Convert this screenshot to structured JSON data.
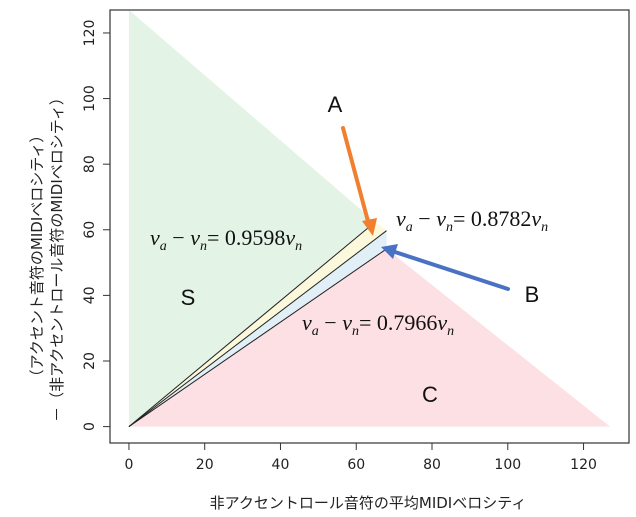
{
  "chart_data": {
    "type": "area",
    "xlabel": "非アクセントロール音符の平均MIDIベロシティ",
    "ylabel_lines": [
      "（アクセント音符のMIDIベロシティ）",
      "－（非アクセントロール音符のMIDIベロシティ）"
    ],
    "xlim": [
      -5,
      132
    ],
    "ylim": [
      -5,
      127
    ],
    "x_ticks": [
      "0",
      "20",
      "40",
      "60",
      "80",
      "100",
      "120"
    ],
    "y_ticks": [
      "0",
      "20",
      "40",
      "60",
      "80",
      "100",
      "120"
    ],
    "x_tick_values": [
      0,
      20,
      40,
      60,
      80,
      100,
      120
    ],
    "y_tick_values": [
      0,
      20,
      40,
      60,
      80,
      100,
      120
    ],
    "grid": false,
    "regions": [
      {
        "name": "S",
        "color": "#e3f4e6",
        "polygon": [
          [
            0,
            0
          ],
          [
            0,
            127
          ],
          [
            65,
            62.4
          ]
        ]
      },
      {
        "name": "C",
        "color": "#fde0e3",
        "polygon": [
          [
            0,
            0
          ],
          [
            68,
            54.2
          ],
          [
            127,
            0
          ]
        ]
      },
      {
        "name": "A",
        "color": "#fbf8dc",
        "polygon": [
          [
            0,
            0
          ],
          [
            65,
            62.4
          ],
          [
            68,
            59.7
          ]
        ]
      },
      {
        "name": "B",
        "color": "#e0f0f6",
        "polygon": [
          [
            0,
            0
          ],
          [
            68,
            59.7
          ],
          [
            68,
            54.2
          ]
        ]
      }
    ],
    "lines": [
      {
        "slope": 0.9598,
        "x_end": 65,
        "label": "v_a − v_n = 0.9598v_n"
      },
      {
        "slope": 0.8782,
        "x_end": 68,
        "label": "v_a − v_n = 0.8782v_n"
      },
      {
        "slope": 0.7966,
        "x_end": 68,
        "label": "v_a − v_n = 0.7966v_n"
      }
    ],
    "labels": {
      "S": "S",
      "C": "C",
      "A": "A",
      "B": "B",
      "eq1_coef": "0.9598",
      "eq2_coef": "0.8782",
      "eq3_coef": "0.7966"
    },
    "colors": {
      "arrow_A": "#f07f2f",
      "arrow_B": "#4a72c4",
      "axis": "#333333"
    }
  }
}
